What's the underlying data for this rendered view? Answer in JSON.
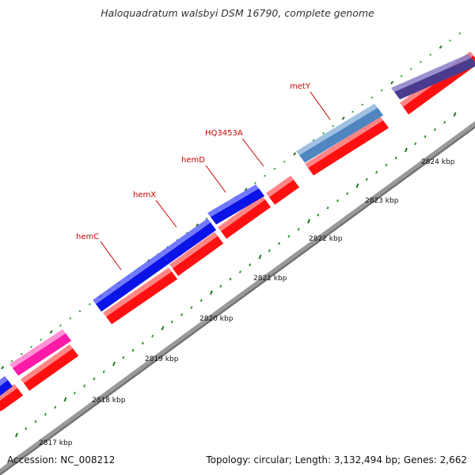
{
  "title": "Haloquadratum walsbyi DSM 16790, complete genome",
  "footer": {
    "accession": "Accession: NC_008212",
    "info": "Topology: circular; Length: 3,132,494 bp; Genes: 2,662"
  },
  "scale": {
    "ticks": [
      "2817 kbp",
      "2818 kbp",
      "2819 kbp",
      "2820 kbp",
      "2821 kbp",
      "2822 kbp",
      "2823 kbp",
      "2824 kbp"
    ]
  },
  "genes": [
    {
      "label": "hemC"
    },
    {
      "label": "hemX"
    },
    {
      "label": "hemD"
    },
    {
      "label": "HQ3453A"
    },
    {
      "label": "metY"
    }
  ],
  "colors": {
    "backbone": "#999999",
    "cds": "#ff1010",
    "gene_blue": "#0a14e6",
    "gene_pink": "#ff1aa8",
    "gene_steel": "#4f86c0",
    "gene_purple": "#4b3b8f",
    "tick_major": "#1a7a1a",
    "tick_minor": "#2aa02a",
    "label": "#cc0000"
  }
}
